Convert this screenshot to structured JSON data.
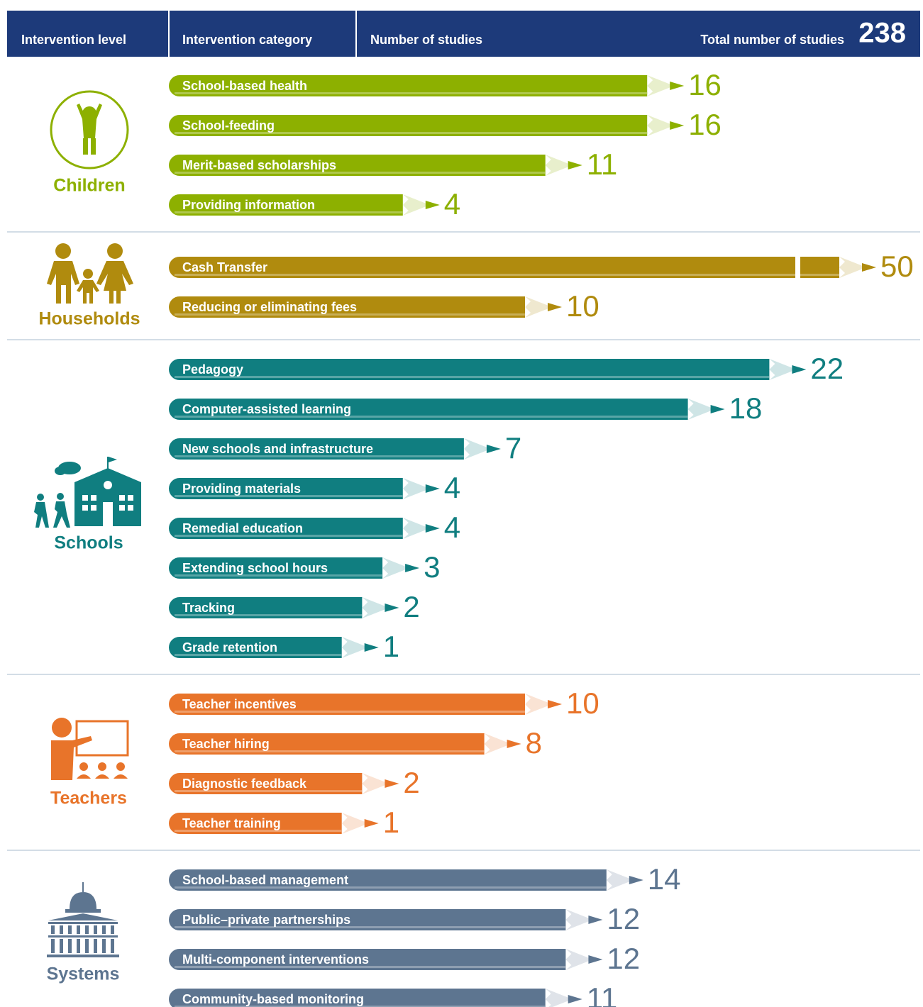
{
  "chart_data": {
    "type": "bar",
    "header": {
      "level": "Intervention level",
      "category": "Intervention category",
      "number": "Number of studies",
      "total_label": "Total number of studies",
      "total": 238
    },
    "groups": [
      {
        "name": "Children",
        "color": "#8db000",
        "categories": [
          "School-based health",
          "School-feeding",
          "Merit-based scholarships",
          "Providing information"
        ],
        "values": [
          16,
          16,
          11,
          4
        ]
      },
      {
        "name": "Households",
        "color": "#b08b0e",
        "categories": [
          "Cash Transfer",
          "Reducing or eliminating fees"
        ],
        "values": [
          50,
          10
        ]
      },
      {
        "name": "Schools",
        "color": "#107e80",
        "categories": [
          "Pedagogy",
          "Computer-assisted learning",
          "New schools and infrastructure",
          "Providing materials",
          "Remedial education",
          "Extending school hours",
          "Tracking",
          "Grade retention"
        ],
        "values": [
          22,
          18,
          7,
          4,
          4,
          3,
          2,
          1
        ]
      },
      {
        "name": "Teachers",
        "color": "#e8742a",
        "categories": [
          "Teacher incentives",
          "Teacher hiring",
          "Diagnostic feedback",
          "Teacher training"
        ],
        "values": [
          10,
          8,
          2,
          1
        ]
      },
      {
        "name": "Systems",
        "color": "#5d7590",
        "categories": [
          "School-based management",
          "Public–private partnerships",
          "Multi-component interventions",
          "Community-based monitoring"
        ],
        "values": [
          14,
          12,
          12,
          11
        ]
      }
    ]
  }
}
